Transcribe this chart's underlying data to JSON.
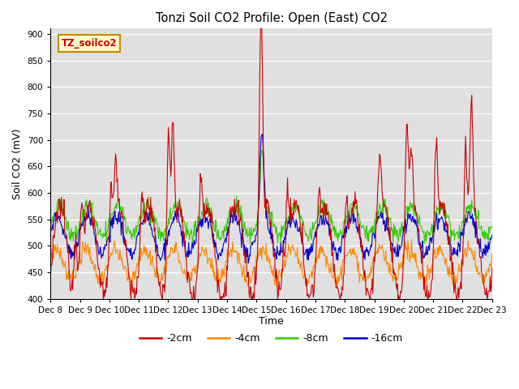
{
  "title": "Tonzi Soil CO2 Profile: Open (East) CO2",
  "ylabel": "Soil CO2 (mV)",
  "xlabel": "Time",
  "ylim": [
    400,
    910
  ],
  "yticks": [
    400,
    450,
    500,
    550,
    600,
    650,
    700,
    750,
    800,
    850,
    900
  ],
  "xtick_labels": [
    "Dec 8",
    "Dec 9",
    "Dec 10",
    "Dec 11",
    "Dec 12",
    "Dec 13",
    "Dec 14",
    "Dec 15",
    "Dec 16",
    "Dec 17",
    "Dec 18",
    "Dec 19",
    "Dec 20",
    "Dec 21",
    "Dec 22",
    "Dec 23"
  ],
  "bg_color": "#e0e0e0",
  "colors": {
    "-2cm": "#cc0000",
    "-4cm": "#ff8800",
    "-8cm": "#33cc00",
    "-16cm": "#0000cc"
  },
  "watermark_text": "TZ_soilco2",
  "watermark_color": "#cc0000",
  "watermark_bg": "#ffffcc",
  "watermark_edge": "#cc8800"
}
